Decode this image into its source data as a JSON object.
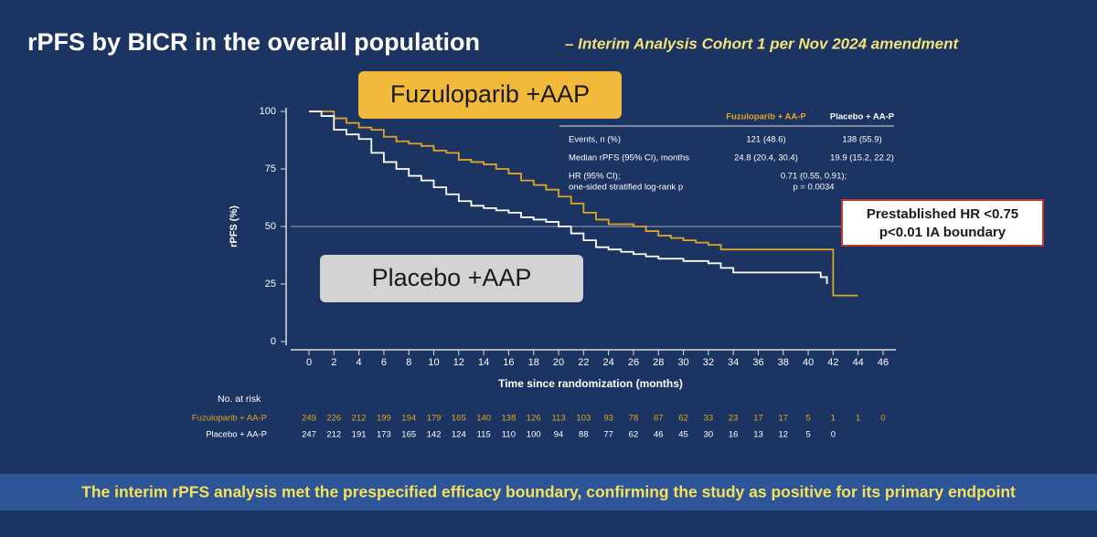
{
  "chart_data": {
    "type": "step",
    "title": "rPFS by BICR in the overall population",
    "subtitle": "– Interim Analysis Cohort 1 per Nov 2024 amendment",
    "x_label": "Time since randomization (months)",
    "y_label": "rPFS (%)",
    "xlim": [
      0,
      46
    ],
    "ylim": [
      0,
      100
    ],
    "xticks": [
      0,
      2,
      4,
      6,
      8,
      10,
      12,
      14,
      16,
      18,
      20,
      22,
      24,
      26,
      28,
      30,
      32,
      34,
      36,
      38,
      40,
      42,
      44,
      46
    ],
    "yticks": [
      0,
      25,
      50,
      75,
      100
    ],
    "reference_line": 50,
    "series": [
      {
        "name": "Fuzuloparib +AAP",
        "color": "#e0a526",
        "x": [
          0,
          1.5,
          2,
          3,
          4,
          5,
          6,
          7,
          8,
          9,
          10,
          11,
          12,
          13,
          14,
          15,
          16,
          17,
          18,
          19,
          20,
          21,
          22,
          23,
          24,
          26,
          27,
          28,
          29,
          30,
          31,
          32,
          33,
          41.8,
          42,
          44
        ],
        "values": [
          100,
          100,
          97,
          95,
          93,
          92,
          89,
          87,
          86,
          85,
          83,
          82,
          79,
          78,
          77,
          75,
          73,
          70,
          68,
          66,
          63,
          60,
          56,
          53,
          51,
          50,
          48,
          46,
          45,
          44,
          43,
          42,
          40,
          40,
          20,
          20
        ]
      },
      {
        "name": "Placebo +AAP",
        "color": "#ffffff",
        "x": [
          0,
          1,
          2,
          3,
          4,
          5,
          6,
          7,
          8,
          9,
          10,
          11,
          12,
          13,
          14,
          15,
          16,
          17,
          18,
          19,
          20,
          21,
          22,
          23,
          24,
          25,
          26,
          27,
          28,
          30,
          32,
          33,
          34,
          41,
          41.5
        ],
        "values": [
          100,
          98,
          92,
          90,
          88,
          82,
          78,
          75,
          72,
          70,
          67,
          64,
          61,
          59,
          58,
          57,
          56,
          54,
          53,
          52,
          50,
          47,
          44,
          41,
          40,
          39,
          38,
          37,
          36,
          35,
          34,
          32,
          30,
          28,
          25
        ]
      }
    ],
    "annotation": [
      "Prestablished HR <0.75",
      "p<0.01 IA boundary"
    ],
    "stats_table": {
      "columns": [
        "Fuzuloparib + AA-P",
        "Placebo + AA-P"
      ],
      "rows": [
        {
          "label": [
            "Events, n (%)"
          ],
          "values": [
            "121 (48.6)",
            "138 (55.9)"
          ]
        },
        {
          "label": [
            "Median rPFS (95% CI), months"
          ],
          "values": [
            "24.8 (20.4, 30.4)",
            "19.9 (15.2, 22.2)"
          ]
        },
        {
          "label": [
            "HR (95% CI);",
            "one-sided stratified log-rank p"
          ],
          "values": [
            "0.71 (0.55, 0.91);",
            "p = 0.0034"
          ]
        }
      ]
    },
    "at_risk": {
      "title": "No. at risk",
      "rows": [
        {
          "name": "Fuzuloparib + AA-P",
          "values": [
            249,
            226,
            212,
            199,
            194,
            179,
            165,
            140,
            138,
            126,
            113,
            103,
            93,
            78,
            67,
            62,
            33,
            23,
            17,
            17,
            5,
            1,
            1,
            0
          ]
        },
        {
          "name": "Placebo + AA-P",
          "values": [
            247,
            212,
            191,
            173,
            165,
            142,
            124,
            115,
            110,
            100,
            94,
            88,
            77,
            62,
            46,
            45,
            30,
            16,
            13,
            12,
            5,
            0
          ]
        }
      ]
    },
    "footer": "The interim rPFS analysis met the prespecified efficacy boundary, confirming the study as positive for its primary endpoint"
  }
}
